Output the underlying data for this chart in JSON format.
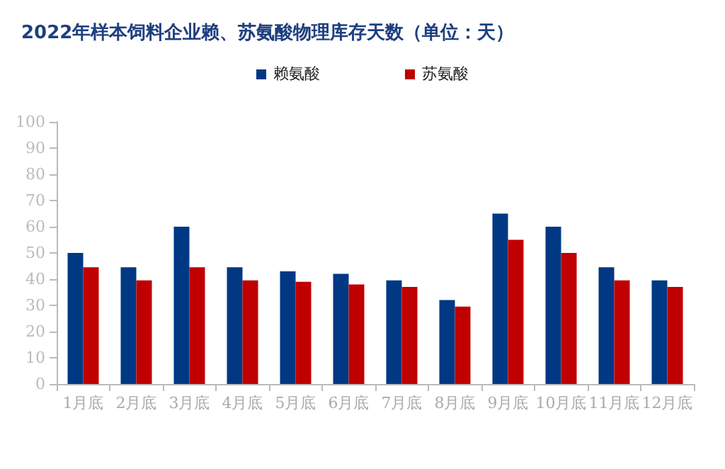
{
  "chart_data": {
    "type": "bar",
    "title": "2022年样本饲料企业赖、苏氨酸物理库存天数（单位：天）",
    "categories": [
      "1月底",
      "2月底",
      "3月底",
      "4月底",
      "5月底",
      "6月底",
      "7月底",
      "8月底",
      "9月底",
      "10月底",
      "11月底",
      "12月底"
    ],
    "series": [
      {
        "name": "赖氨酸",
        "color": "#003884",
        "values": [
          50,
          44.5,
          60,
          44.5,
          43,
          42,
          39.5,
          32,
          65,
          60,
          44.5,
          39.5
        ]
      },
      {
        "name": "苏氨酸",
        "color": "#c00000",
        "values": [
          44.5,
          39.5,
          44.5,
          39.5,
          39,
          38,
          37,
          29.5,
          55,
          50,
          39.5,
          37
        ]
      }
    ],
    "ylim": [
      0,
      100
    ],
    "yticks": [
      0,
      10,
      20,
      30,
      40,
      50,
      60,
      70,
      80,
      90,
      100
    ],
    "grid": false,
    "legend": "top"
  }
}
